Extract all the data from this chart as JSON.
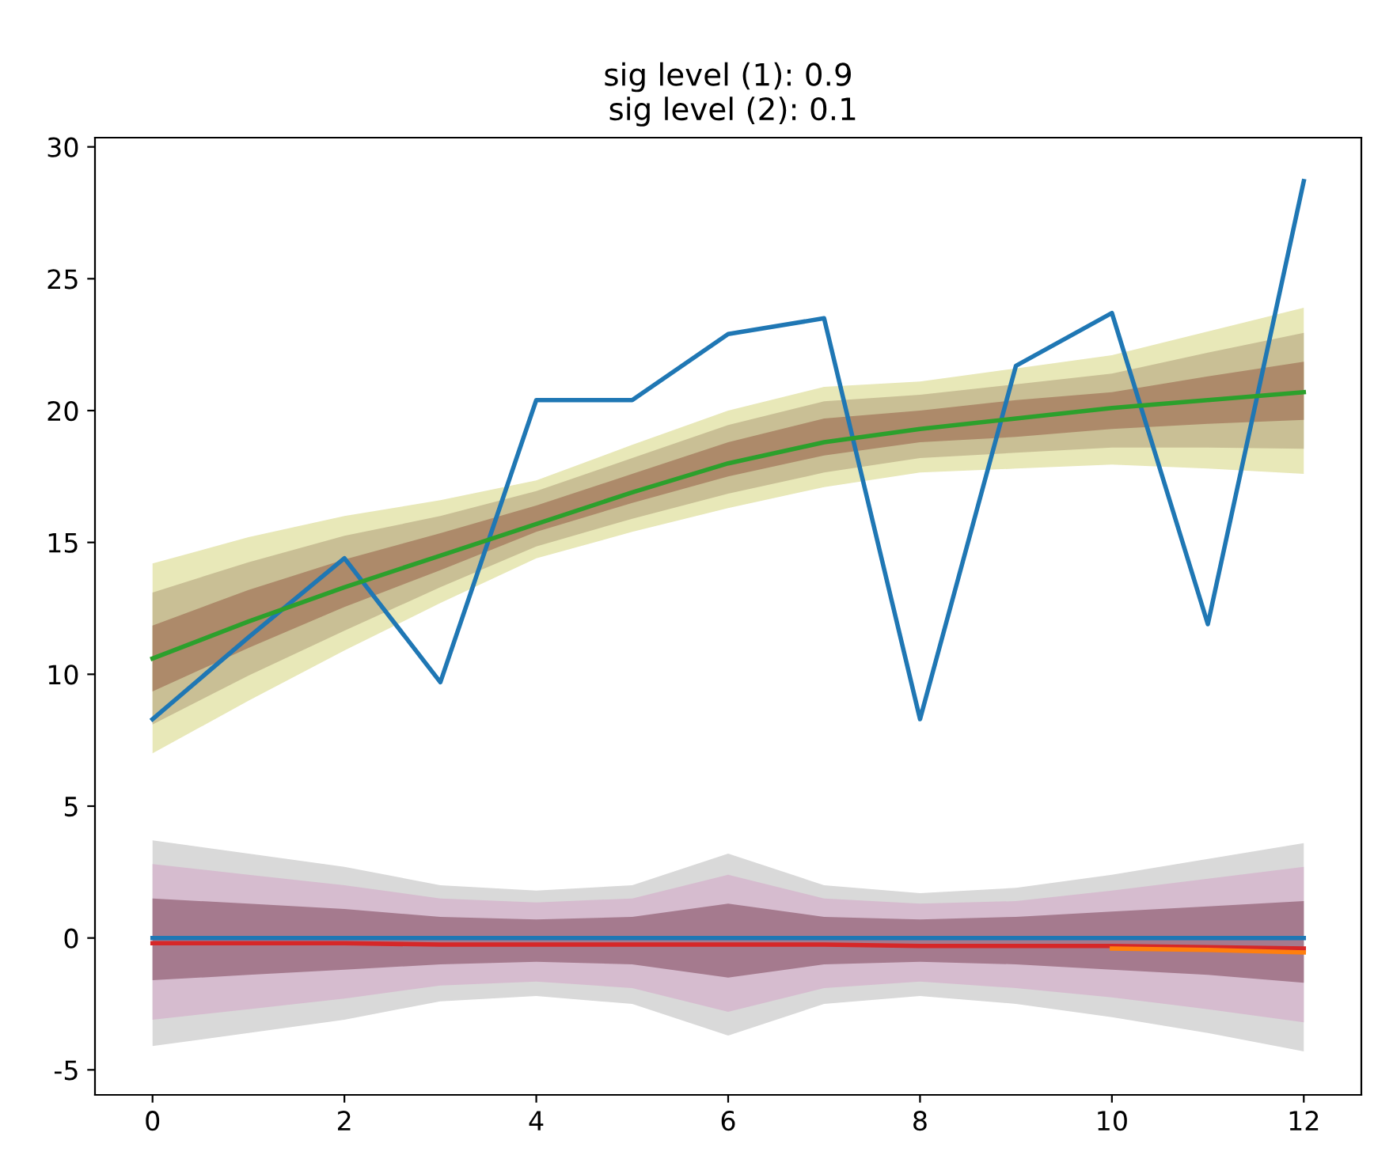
{
  "chart_data": {
    "type": "line",
    "title": "sig level (1): 0.9\n sig level (2): 0.1",
    "x": [
      0,
      1,
      2,
      3,
      4,
      5,
      6,
      7,
      8,
      9,
      10,
      11,
      12
    ],
    "xlim": [
      -0.6,
      12.6
    ],
    "xticks": [
      0,
      2,
      4,
      6,
      8,
      10,
      12
    ],
    "ylim": [
      -5.95,
      30.35
    ],
    "yticks": [
      -5,
      0,
      5,
      10,
      15,
      20,
      25,
      30
    ],
    "grid": false,
    "series": [
      {
        "color": "#e8e8b8",
        "values": [
          null,
          null,
          null,
          null,
          null,
          null,
          null,
          null,
          null,
          null,
          null,
          null,
          null
        ],
        "lower": [
          7.0,
          9.0,
          10.9,
          12.7,
          14.4,
          15.4,
          16.3,
          17.1,
          17.65,
          17.8,
          17.95,
          17.8,
          17.6
        ],
        "upper": [
          14.2,
          15.2,
          16.0,
          16.6,
          17.35,
          18.7,
          20.0,
          20.9,
          21.1,
          21.6,
          22.1,
          23.0,
          23.9
        ]
      },
      {
        "color": "#c9bf95",
        "values": [
          null,
          null,
          null,
          null,
          null,
          null,
          null,
          null,
          null,
          null,
          null,
          null,
          null
        ],
        "lower": [
          8.1,
          9.95,
          11.65,
          13.3,
          14.85,
          15.9,
          16.85,
          17.65,
          18.2,
          18.4,
          18.6,
          18.6,
          18.55
        ],
        "upper": [
          13.1,
          14.25,
          15.25,
          16.0,
          16.95,
          18.2,
          19.45,
          20.35,
          20.6,
          21.0,
          21.4,
          22.2,
          22.95
        ]
      },
      {
        "color": "#ad8a6a",
        "values": [
          null,
          null,
          null,
          null,
          null,
          null,
          null,
          null,
          null,
          null,
          null,
          null,
          null
        ],
        "lower": [
          9.35,
          11.0,
          12.55,
          13.95,
          15.4,
          16.5,
          17.5,
          18.3,
          18.8,
          19.0,
          19.3,
          19.5,
          19.65
        ],
        "upper": [
          11.85,
          13.2,
          14.35,
          15.35,
          16.4,
          17.6,
          18.8,
          19.7,
          20.0,
          20.4,
          20.7,
          21.3,
          21.85
        ]
      },
      {
        "color": "#d9d9d9",
        "values": [
          null,
          null,
          null,
          null,
          null,
          null,
          null,
          null,
          null,
          null,
          null,
          null,
          null
        ],
        "lower": [
          -4.1,
          -3.6,
          -3.1,
          -2.4,
          -2.2,
          -2.5,
          -3.7,
          -2.5,
          -2.2,
          -2.5,
          -3.0,
          -3.6,
          -4.3
        ],
        "upper": [
          3.7,
          3.2,
          2.7,
          2.0,
          1.8,
          2.0,
          3.2,
          2.0,
          1.7,
          1.9,
          2.4,
          3.0,
          3.6
        ]
      },
      {
        "color": "#d6bccf",
        "values": [
          null,
          null,
          null,
          null,
          null,
          null,
          null,
          null,
          null,
          null,
          null,
          null,
          null
        ],
        "lower": [
          -3.1,
          -2.7,
          -2.3,
          -1.8,
          -1.65,
          -1.9,
          -2.8,
          -1.9,
          -1.65,
          -1.9,
          -2.25,
          -2.7,
          -3.2
        ],
        "upper": [
          2.8,
          2.4,
          2.0,
          1.5,
          1.35,
          1.5,
          2.4,
          1.5,
          1.3,
          1.4,
          1.8,
          2.25,
          2.7
        ]
      },
      {
        "color": "#a57a8e",
        "values": [
          null,
          null,
          null,
          null,
          null,
          null,
          null,
          null,
          null,
          null,
          null,
          null,
          null
        ],
        "lower": [
          -1.6,
          -1.4,
          -1.2,
          -1.0,
          -0.9,
          -1.0,
          -1.5,
          -1.0,
          -0.9,
          -1.0,
          -1.2,
          -1.4,
          -1.7
        ],
        "upper": [
          1.5,
          1.3,
          1.1,
          0.8,
          0.7,
          0.8,
          1.3,
          0.8,
          0.7,
          0.8,
          1.0,
          1.2,
          1.4
        ]
      },
      {
        "color": "#d62728",
        "values": [
          -0.2,
          -0.2,
          -0.2,
          -0.25,
          -0.25,
          -0.25,
          -0.25,
          -0.25,
          -0.3,
          -0.3,
          -0.3,
          -0.35,
          -0.4
        ]
      },
      {
        "color": "#ff7f0e",
        "values": [
          null,
          null,
          null,
          null,
          null,
          null,
          null,
          null,
          null,
          null,
          -0.4,
          -0.45,
          -0.55
        ]
      },
      {
        "color": "#1f77b4",
        "values": [
          0,
          0,
          0,
          0,
          0,
          0,
          0,
          0,
          0,
          0,
          0,
          0,
          0
        ]
      },
      {
        "color": "#1f77b4",
        "values": [
          8.3,
          11.4,
          14.4,
          9.7,
          20.4,
          20.4,
          22.9,
          23.5,
          8.3,
          21.7,
          23.7,
          11.9,
          28.7
        ]
      },
      {
        "color": "#2ca02c",
        "values": [
          10.6,
          12.0,
          13.3,
          14.5,
          15.7,
          16.9,
          18.0,
          18.8,
          19.3,
          19.7,
          20.1,
          20.4,
          20.7
        ]
      }
    ]
  }
}
